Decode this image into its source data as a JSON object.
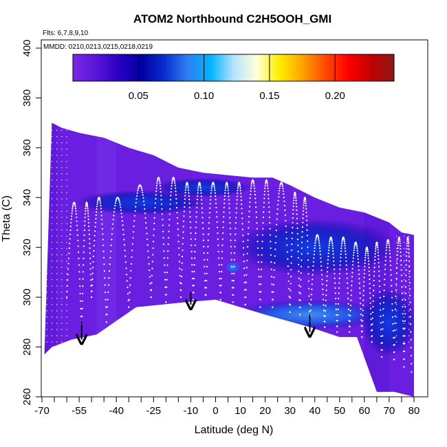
{
  "chart_data": {
    "type": "heatmap",
    "title": "ATOM2 Northbound C2H5OOH_GMI",
    "flights_note": "Flts: 6,7,8,9,10",
    "dates_note": "MMDD: 0210,0213,0215,0218,0219",
    "xlabel": "Latitude (deg N)",
    "ylabel": "Theta (C)",
    "xlim": [
      -70,
      80
    ],
    "ylim": [
      260,
      400
    ],
    "x_ticks_labeled": [
      -70,
      -55,
      -40,
      -25,
      -10,
      0,
      10,
      20,
      30,
      40,
      50,
      60,
      70,
      80
    ],
    "x_ticks_minor": [
      -65,
      -60,
      -50,
      -45,
      -35,
      -30,
      -20,
      -15,
      -5,
      5,
      15,
      25,
      35,
      45,
      55,
      65,
      75
    ],
    "y_ticks": [
      260,
      280,
      300,
      320,
      340,
      360,
      380,
      400
    ],
    "colorbar": {
      "range": [
        0,
        0.245
      ],
      "ticks": [
        0.05,
        0.1,
        0.15,
        0.2
      ],
      "tick_labels": [
        "0.05",
        "0.10",
        "0.15",
        "0.20"
      ],
      "colors": [
        "#7a29e6",
        "#5a16d8",
        "#2a00c4",
        "#00009f",
        "#0a2ed0",
        "#2f7ff0",
        "#00b4ff",
        "#b4e2ff",
        "#ffffdb",
        "#ffee00",
        "#ffa200",
        "#ff4a00",
        "#ff0000",
        "#c00000",
        "#8b1a1a"
      ]
    },
    "field": {
      "description_values": "background mixing ratio mostly 0-0.03 (purple), enhanced 0.03-0.08 (blue) near 330-345 K at 50S-40S and 285-300 K at 20N-50N",
      "top_boundary": [
        [
          -66,
          370
        ],
        [
          -62,
          368
        ],
        [
          -55,
          366
        ],
        [
          -45,
          364
        ],
        [
          -35,
          360
        ],
        [
          -25,
          357
        ],
        [
          -15,
          352
        ],
        [
          -5,
          350
        ],
        [
          5,
          349
        ],
        [
          15,
          348
        ],
        [
          23,
          348
        ],
        [
          30,
          345
        ],
        [
          40,
          340
        ],
        [
          50,
          336
        ],
        [
          60,
          334
        ],
        [
          70,
          330
        ],
        [
          75,
          326
        ],
        [
          80,
          325
        ]
      ],
      "bottom_boundary": [
        [
          -69,
          277
        ],
        [
          -66,
          280
        ],
        [
          -58,
          283
        ],
        [
          -48,
          285
        ],
        [
          -32,
          296
        ],
        [
          -12,
          298
        ],
        [
          0,
          299
        ],
        [
          10,
          296
        ],
        [
          20,
          293
        ],
        [
          38,
          288
        ],
        [
          50,
          284
        ],
        [
          57,
          284
        ],
        [
          65,
          262
        ],
        [
          72,
          262
        ],
        [
          80,
          260
        ]
      ]
    },
    "flight_track_note": "white dotted aircraft flight track with repeated vertical profiles",
    "arrows": [
      {
        "x": -54,
        "y_from": 290,
        "y_to": 283
      },
      {
        "x": -10,
        "y_from": 302,
        "y_to": 297
      },
      {
        "x": 38,
        "y_from": 293,
        "y_to": 286
      }
    ]
  }
}
